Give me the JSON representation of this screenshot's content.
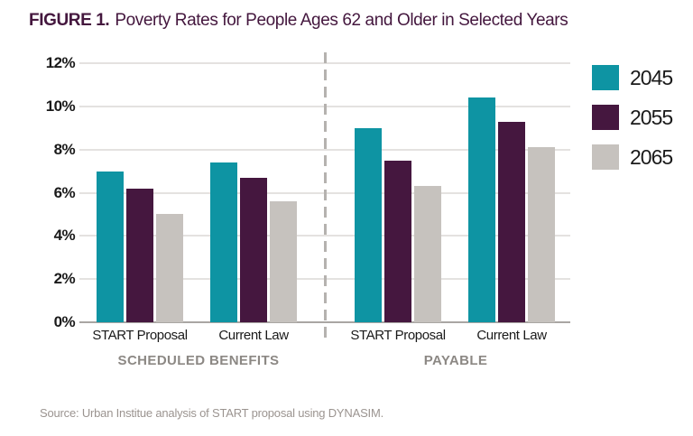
{
  "title": {
    "prefix": "FIGURE 1.",
    "text": "Poverty Rates for People Ages 62 and Older in Selected Years"
  },
  "source": "Source: Urban Institue analysis of START proposal using DYNASIM.",
  "colors": {
    "title_text": "#44173E",
    "axis_text": "#1A1A1A",
    "gridline": "#E4E2E0",
    "baseline": "#A9A6A3",
    "divider": "#B5B2AF",
    "panel_label": "#8C8884",
    "source_text": "#9B9490",
    "teal": "#0E94A3",
    "purple": "#45173F",
    "gray": "#C6C2BE"
  },
  "chart_data": {
    "type": "bar",
    "title": "FIGURE 1. Poverty Rates for People Ages 62 and Older in Selected Years",
    "ylabel": "",
    "xlabel": "",
    "ylim": [
      0,
      12
    ],
    "grid": true,
    "y_ticks": [
      "12%",
      "10%",
      "8%",
      "6%",
      "4%",
      "2%",
      "0%"
    ],
    "series_names": [
      "2045",
      "2055",
      "2065"
    ],
    "legend_position": "top-right",
    "legend": [
      {
        "label": "2045",
        "color": "#0E94A3"
      },
      {
        "label": "2055",
        "color": "#45173F"
      },
      {
        "label": "2065",
        "color": "#C6C2BE"
      }
    ],
    "panels": [
      {
        "label": "SCHEDULED BENEFITS",
        "groups": [
          {
            "label": "START Proposal",
            "values": [
              7.0,
              6.2,
              5.0
            ]
          },
          {
            "label": "Current Law",
            "values": [
              7.4,
              6.7,
              5.6
            ]
          }
        ]
      },
      {
        "label": "PAYABLE",
        "groups": [
          {
            "label": "START Proposal",
            "values": [
              9.0,
              7.5,
              6.3
            ]
          },
          {
            "label": "Current Law",
            "values": [
              10.4,
              9.3,
              8.1
            ]
          }
        ]
      }
    ]
  }
}
